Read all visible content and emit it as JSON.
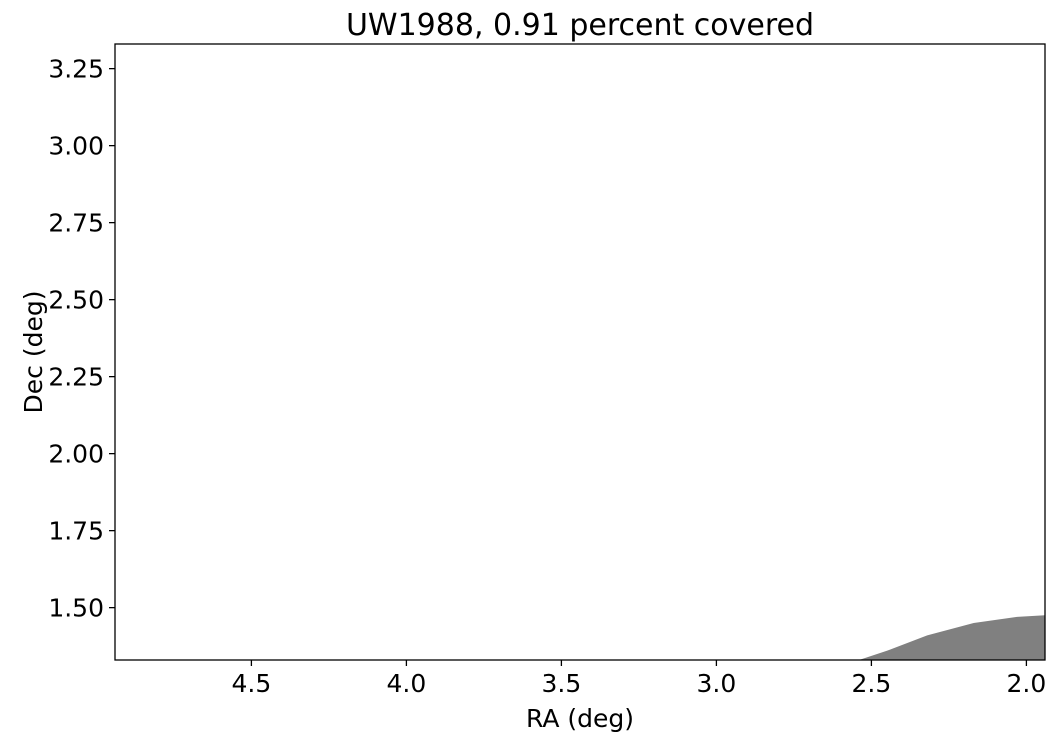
{
  "chart_data": {
    "type": "area",
    "title": "UW1988, 0.91 percent covered",
    "xlabel": "RA (deg)",
    "ylabel": "Dec (deg)",
    "xlim": [
      4.94,
      1.94
    ],
    "ylim": [
      1.33,
      3.33
    ],
    "x_inverted": true,
    "grid": false,
    "xticks": [
      4.5,
      4.0,
      3.5,
      3.0,
      2.5,
      2.0
    ],
    "xtick_labels": [
      "4.5",
      "4.0",
      "3.5",
      "3.0",
      "2.5",
      "2.0"
    ],
    "yticks": [
      1.5,
      1.75,
      2.0,
      2.25,
      2.5,
      2.75,
      3.0,
      3.25
    ],
    "ytick_labels": [
      "1.50",
      "1.75",
      "2.00",
      "2.25",
      "2.50",
      "2.75",
      "3.00",
      "3.25"
    ],
    "series": [
      {
        "color": "#808080",
        "points": [
          [
            2.54,
            1.33
          ],
          [
            2.45,
            1.36
          ],
          [
            2.32,
            1.41
          ],
          [
            2.17,
            1.45
          ],
          [
            2.03,
            1.47
          ],
          [
            1.94,
            1.475
          ],
          [
            1.94,
            1.33
          ]
        ]
      }
    ]
  }
}
